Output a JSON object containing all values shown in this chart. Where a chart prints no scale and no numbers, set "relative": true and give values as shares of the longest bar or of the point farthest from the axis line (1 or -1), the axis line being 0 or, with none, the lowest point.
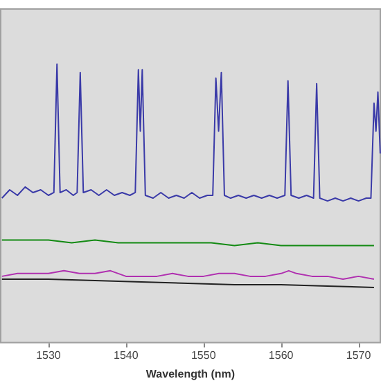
{
  "chart_data": {
    "type": "line",
    "xlabel": "Wavelength (nm)",
    "relative": true,
    "xlim": [
      1523.75,
      1572.9
    ],
    "xticks": [
      1530,
      1540,
      1550,
      1560,
      1570
    ],
    "legend": false,
    "marker": "none",
    "line_style": "solid",
    "series": [
      {
        "color": "#3a3aa8",
        "x": [
          1524,
          1525,
          1526,
          1527,
          1528,
          1529,
          1530,
          1530.7,
          1531.1,
          1531.5,
          1532.3,
          1533.2,
          1533.7,
          1534.1,
          1534.5,
          1535.5,
          1536.5,
          1537.5,
          1538.5,
          1539.5,
          1540.5,
          1541.2,
          1541.6,
          1541.85,
          1542.1,
          1542.5,
          1543.5,
          1544.5,
          1545.5,
          1546.5,
          1547.5,
          1548.5,
          1549.5,
          1550.5,
          1551.2,
          1551.6,
          1551.95,
          1552.3,
          1552.7,
          1553.5,
          1554.5,
          1555.5,
          1556.5,
          1557.5,
          1558.5,
          1559.5,
          1560.5,
          1560.9,
          1561.3,
          1562.3,
          1563.3,
          1564.2,
          1564.6,
          1565,
          1566,
          1567,
          1568,
          1569,
          1570,
          1571,
          1571.6,
          1572,
          1572.25,
          1572.5,
          1572.8
        ],
        "values": [
          0.52,
          0.55,
          0.53,
          0.56,
          0.54,
          0.55,
          0.53,
          0.54,
          1.0,
          0.54,
          0.55,
          0.53,
          0.54,
          0.97,
          0.54,
          0.55,
          0.53,
          0.55,
          0.53,
          0.54,
          0.53,
          0.54,
          0.98,
          0.76,
          0.98,
          0.53,
          0.52,
          0.54,
          0.52,
          0.53,
          0.52,
          0.54,
          0.52,
          0.53,
          0.53,
          0.95,
          0.76,
          0.97,
          0.53,
          0.52,
          0.53,
          0.52,
          0.53,
          0.52,
          0.53,
          0.52,
          0.53,
          0.94,
          0.53,
          0.52,
          0.53,
          0.52,
          0.93,
          0.52,
          0.51,
          0.52,
          0.51,
          0.52,
          0.51,
          0.52,
          0.52,
          0.86,
          0.76,
          0.9,
          0.68
        ]
      },
      {
        "color": "#138a13",
        "x": [
          1524,
          1527,
          1530,
          1533,
          1536,
          1539,
          1542,
          1545,
          1548,
          1551,
          1554,
          1557,
          1560,
          1563,
          1566,
          1569,
          1572
        ],
        "values": [
          0.37,
          0.37,
          0.37,
          0.36,
          0.37,
          0.36,
          0.36,
          0.36,
          0.36,
          0.36,
          0.35,
          0.36,
          0.35,
          0.35,
          0.35,
          0.35,
          0.35
        ]
      },
      {
        "color": "#b030b0",
        "x": [
          1524,
          1526,
          1528,
          1530,
          1532,
          1534,
          1536,
          1538,
          1540,
          1542,
          1544,
          1546,
          1548,
          1550,
          1552,
          1554,
          1556,
          1558,
          1560,
          1561,
          1562,
          1564,
          1566,
          1568,
          1570,
          1572
        ],
        "values": [
          0.24,
          0.25,
          0.25,
          0.25,
          0.26,
          0.25,
          0.25,
          0.26,
          0.24,
          0.24,
          0.24,
          0.25,
          0.24,
          0.24,
          0.25,
          0.25,
          0.24,
          0.24,
          0.25,
          0.26,
          0.25,
          0.24,
          0.24,
          0.23,
          0.24,
          0.23
        ]
      },
      {
        "color": "#222222",
        "x": [
          1524,
          1530,
          1536,
          1542,
          1548,
          1554,
          1560,
          1566,
          1572
        ],
        "values": [
          0.23,
          0.23,
          0.225,
          0.22,
          0.215,
          0.21,
          0.21,
          0.205,
          0.2
        ]
      }
    ]
  }
}
